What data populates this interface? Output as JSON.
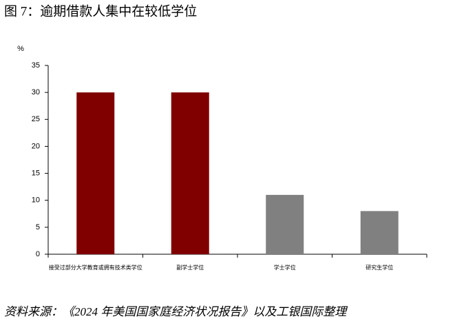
{
  "chart_data": {
    "type": "bar",
    "title": "图 7：逾期借款人集中在较低学位",
    "y_label": "%",
    "categories": [
      "接受过部分大学教育或拥有技术类学位",
      "副学士学位",
      "学士学位",
      "研究生学位"
    ],
    "values": [
      30,
      30,
      11,
      8
    ],
    "colors": [
      "#800000",
      "#800000",
      "#808080",
      "#808080"
    ],
    "ylim": [
      0,
      35
    ],
    "yticks": [
      0,
      5,
      10,
      15,
      20,
      25,
      30,
      35
    ],
    "grid": false,
    "source": "资料来源：《2024 年美国国家庭经济状况报告》以及工银国际整理"
  }
}
